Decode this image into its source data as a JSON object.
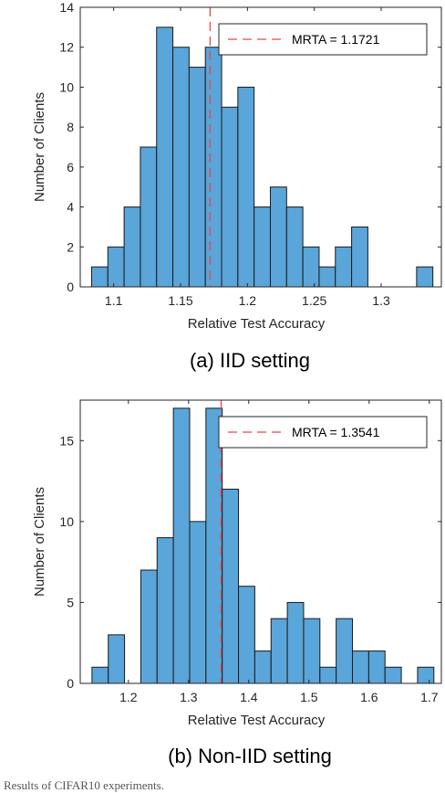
{
  "colors": {
    "bar_fill": "#5aa5d9",
    "bar_edge": "#1a1a1a",
    "mean_line": "#e8464a",
    "axis": "#262626"
  },
  "chart_data": [
    {
      "type": "bar",
      "caption": "(a) IID setting",
      "xlabel": "Relative Test Accuracy",
      "ylabel": "Number of Clients",
      "xlim": [
        1.075,
        1.345
      ],
      "ylim": [
        0,
        14
      ],
      "xticks": [
        1.1,
        1.15,
        1.2,
        1.25,
        1.3
      ],
      "xtick_labels": [
        "1.1",
        "1.15",
        "1.2",
        "1.25",
        "1.3"
      ],
      "yticks": [
        0,
        2,
        4,
        6,
        8,
        10,
        12,
        14
      ],
      "ytick_labels": [
        "0",
        "2",
        "4",
        "6",
        "8",
        "10",
        "12",
        "14"
      ],
      "bin_start": 1.0835,
      "bin_width": 0.01215,
      "values": [
        1,
        2,
        4,
        7,
        13,
        12,
        11,
        12,
        9,
        10,
        4,
        5,
        4,
        2,
        1,
        2,
        3,
        0,
        0,
        0,
        1
      ],
      "mean_line": {
        "x": 1.1721,
        "legend_label": "MRTA = 1.1721"
      },
      "grid": false,
      "legend_placement": "top-right"
    },
    {
      "type": "bar",
      "caption": "(b) Non-IID setting",
      "xlabel": "Relative Test Accuracy",
      "ylabel": "Number of Clients",
      "xlim": [
        1.12,
        1.72
      ],
      "ylim": [
        0,
        17.5
      ],
      "xticks": [
        1.2,
        1.3,
        1.4,
        1.5,
        1.6,
        1.7
      ],
      "xtick_labels": [
        "1.2",
        "1.3",
        "1.4",
        "1.5",
        "1.6",
        "1.7"
      ],
      "yticks": [
        0,
        5,
        10,
        15
      ],
      "ytick_labels": [
        "0",
        "5",
        "10",
        "15"
      ],
      "bin_start": 1.1395,
      "bin_width": 0.02705,
      "values": [
        1,
        3,
        0,
        7,
        9,
        17,
        10,
        17,
        12,
        6,
        2,
        4,
        5,
        4,
        1,
        4,
        2,
        2,
        1,
        0,
        1
      ],
      "mean_line": {
        "x": 1.3541,
        "legend_label": "MRTA = 1.3541"
      },
      "grid": false,
      "legend_placement": "top-right"
    }
  ],
  "footer_text": "Results of CIFAR10 experiments."
}
